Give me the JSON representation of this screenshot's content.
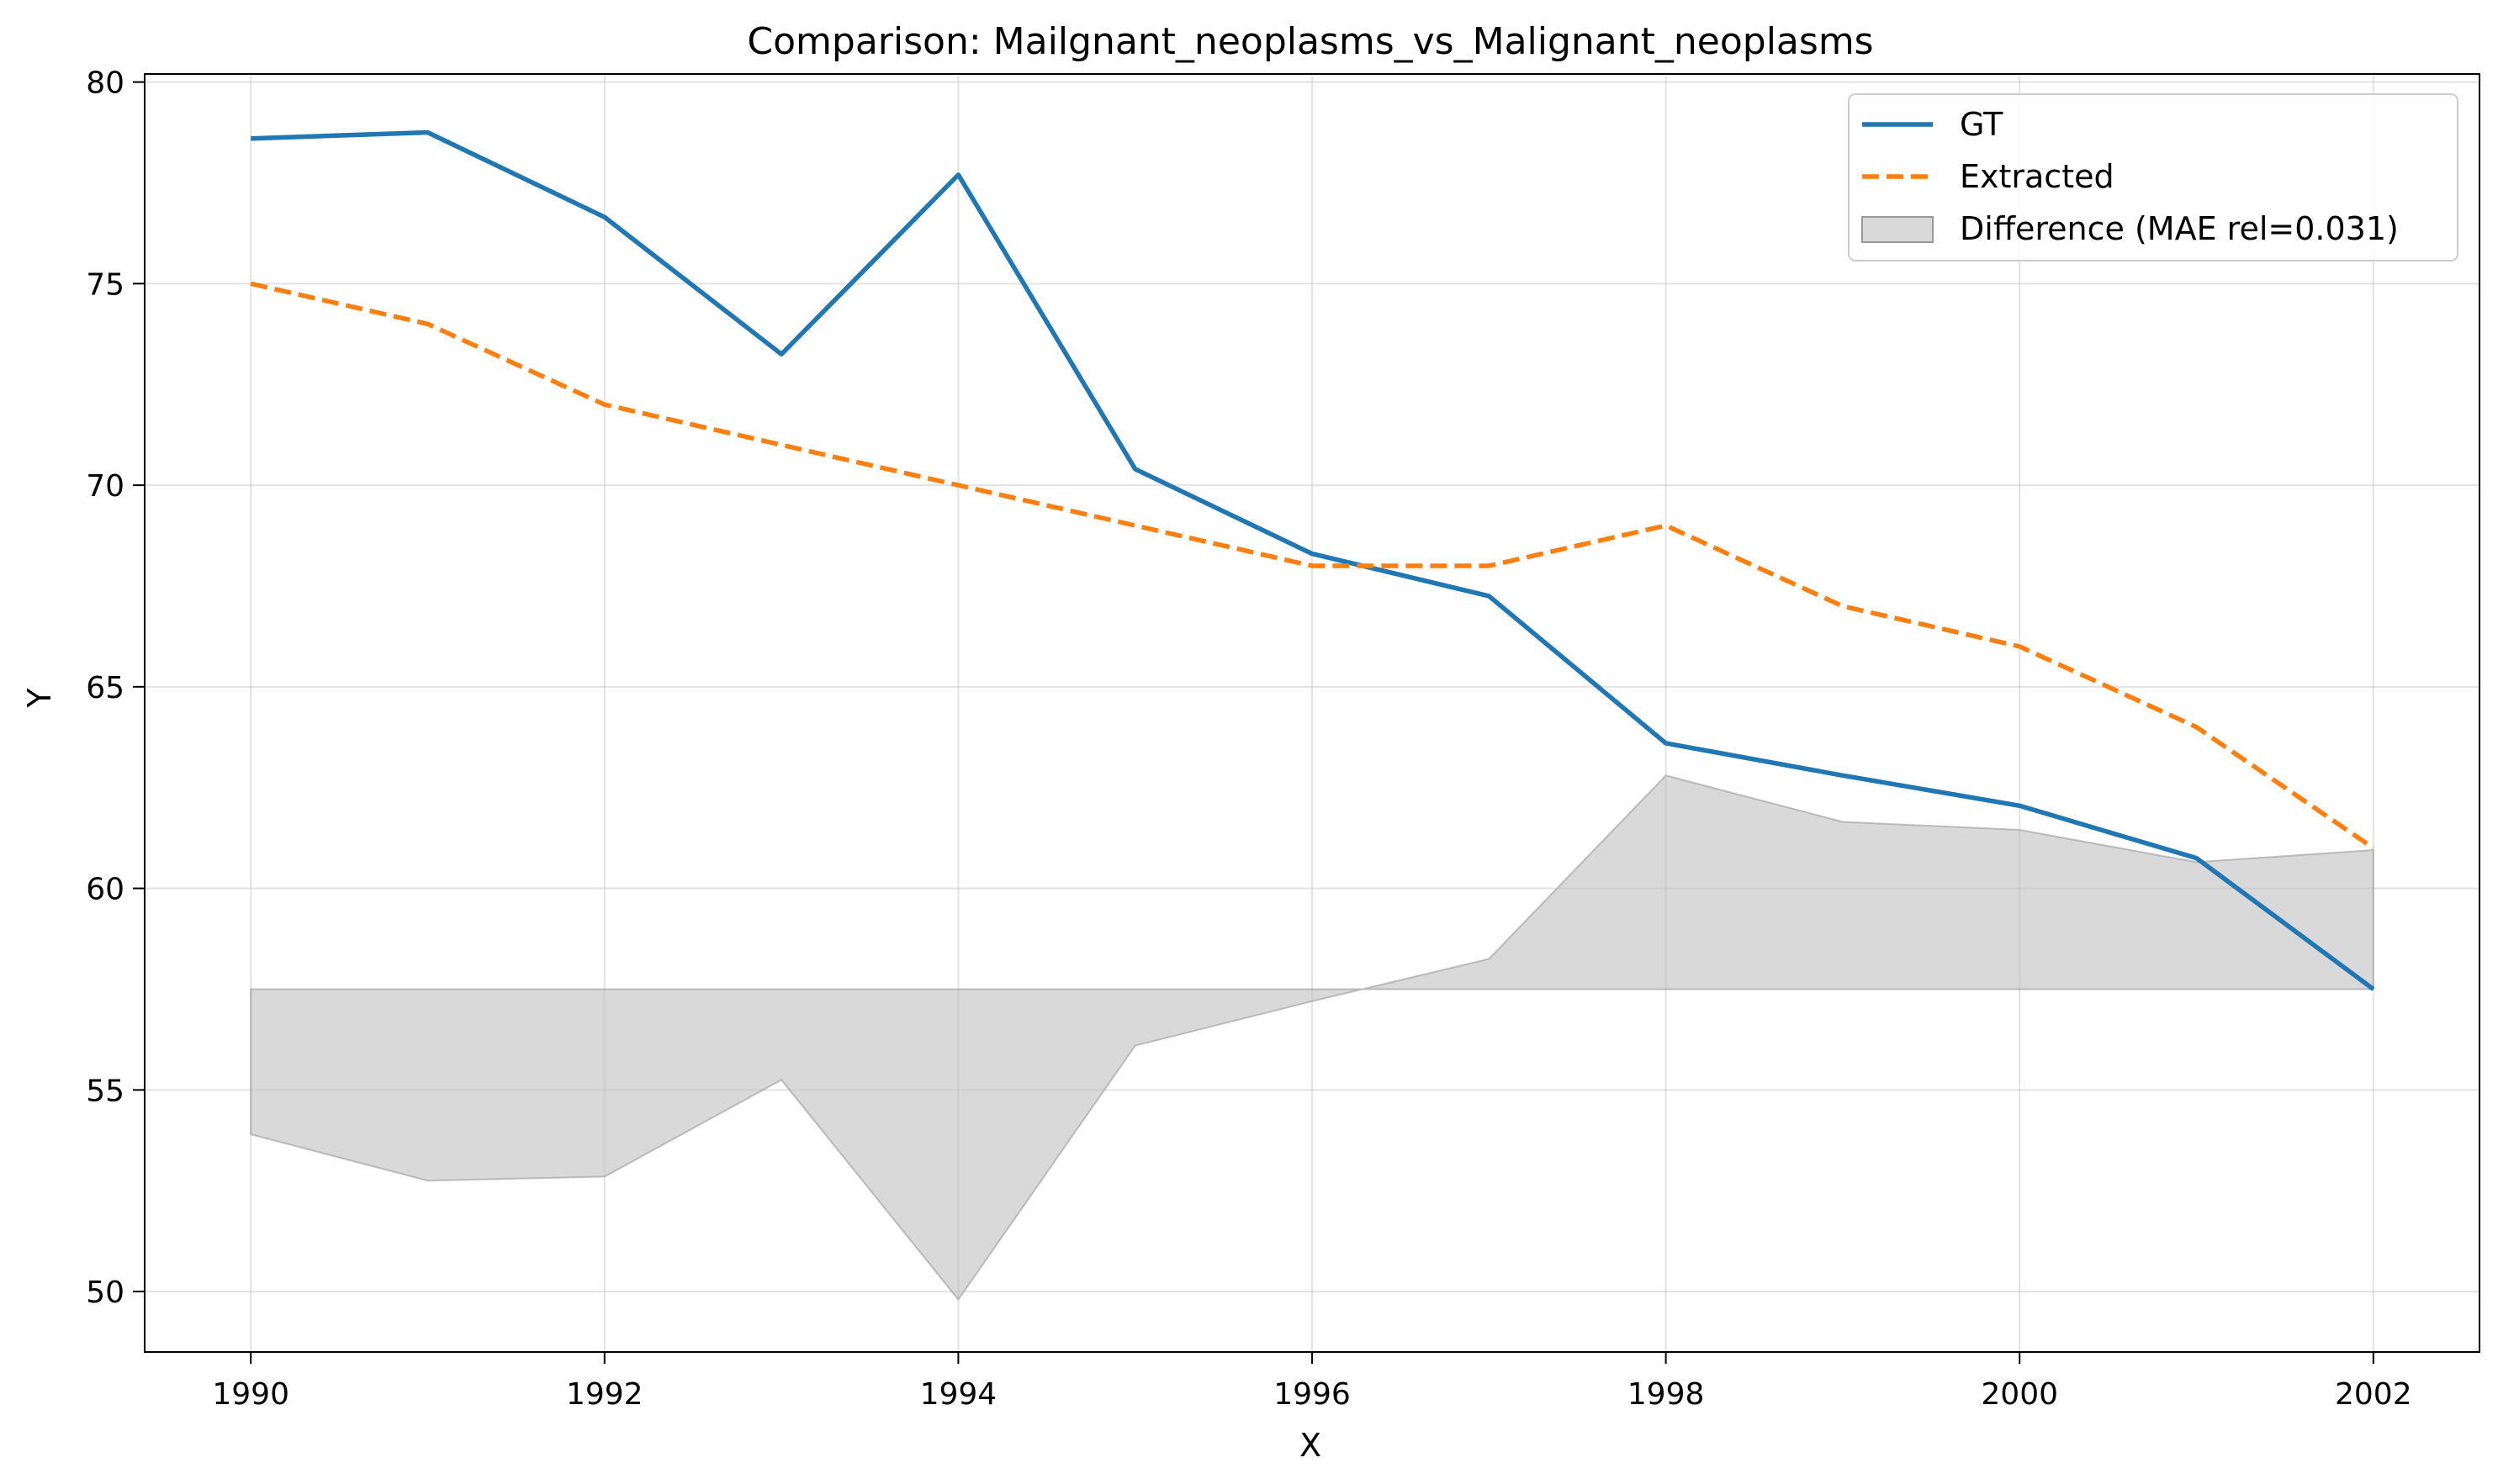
{
  "chart_data": {
    "type": "line",
    "title": "Comparison: Mailgnant_neoplasms_vs_Malignant_neoplasms",
    "xlabel": "X",
    "ylabel": "Y",
    "x": [
      1990,
      1991,
      1992,
      1993,
      1994,
      1995,
      1996,
      1997,
      1998,
      1999,
      2000,
      2001,
      2002
    ],
    "xlim": [
      1989.4,
      2002.6
    ],
    "ylim": [
      48.5,
      80.2
    ],
    "xticks": [
      1990,
      1992,
      1994,
      1996,
      1998,
      2000,
      2002
    ],
    "yticks": [
      50,
      55,
      60,
      65,
      70,
      75,
      80
    ],
    "grid": true,
    "legend_position": "top-right",
    "series": [
      {
        "name": "GT",
        "style": "solid",
        "color": "#1f77b4",
        "values": [
          78.6,
          78.75,
          76.65,
          73.25,
          77.7,
          70.4,
          68.3,
          67.25,
          63.6,
          62.8,
          62.05,
          60.75,
          57.5
        ]
      },
      {
        "name": "Extracted",
        "style": "dashed",
        "color": "#ff7f0e",
        "values": [
          75.0,
          74.0,
          72.0,
          71.0,
          70.0,
          69.0,
          68.0,
          68.0,
          69.0,
          67.0,
          66.0,
          64.0,
          61.0
        ]
      }
    ],
    "difference": {
      "name": "Difference (MAE rel=0.031)",
      "color": "#bfbfbf",
      "baseline": 57.5,
      "values": [
        53.9,
        52.75,
        52.85,
        55.25,
        49.8,
        56.1,
        57.2,
        58.25,
        62.8,
        61.65,
        61.45,
        60.65,
        60.95
      ]
    }
  }
}
